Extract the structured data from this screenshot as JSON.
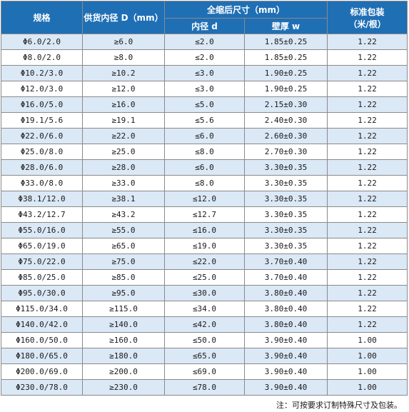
{
  "headers": {
    "spec": "规格",
    "supply_inner_dia": "供货内径 D（mm）",
    "shrunk_size": "全缩后尺寸（mm）",
    "inner_dia": "内径 d",
    "wall_thickness": "壁厚 w",
    "standard_pack": "标准包装",
    "pack_unit": "（米/根）"
  },
  "colors": {
    "header_bg": "#1f6fb5",
    "header_text": "#ffffff",
    "row_stripe": "#dbe8f6"
  },
  "rows": [
    [
      "Φ6.0/2.0",
      "≥6.0",
      "≤2.0",
      "1.85±0.25",
      "1.22"
    ],
    [
      "Φ8.0/2.0",
      "≥8.0",
      "≤2.0",
      "1.85±0.25",
      "1.22"
    ],
    [
      "Φ10.2/3.0",
      "≥10.2",
      "≤3.0",
      "1.90±0.25",
      "1.22"
    ],
    [
      "Φ12.0/3.0",
      "≥12.0",
      "≤3.0",
      "1.90±0.25",
      "1.22"
    ],
    [
      "Φ16.0/5.0",
      "≥16.0",
      "≤5.0",
      "2.15±0.30",
      "1.22"
    ],
    [
      "Φ19.1/5.6",
      "≥19.1",
      "≤5.6",
      "2.40±0.30",
      "1.22"
    ],
    [
      "Φ22.0/6.0",
      "≥22.0",
      "≤6.0",
      "2.60±0.30",
      "1.22"
    ],
    [
      "Φ25.0/8.0",
      "≥25.0",
      "≤8.0",
      "2.70±0.30",
      "1.22"
    ],
    [
      "Φ28.0/6.0",
      "≥28.0",
      "≤6.0",
      "3.30±0.35",
      "1.22"
    ],
    [
      "Φ33.0/8.0",
      "≥33.0",
      "≤8.0",
      "3.30±0.35",
      "1.22"
    ],
    [
      "Φ38.1/12.0",
      "≥38.1",
      "≤12.0",
      "3.30±0.35",
      "1.22"
    ],
    [
      "Φ43.2/12.7",
      "≥43.2",
      "≤12.7",
      "3.30±0.35",
      "1.22"
    ],
    [
      "Φ55.0/16.0",
      "≥55.0",
      "≤16.0",
      "3.30±0.35",
      "1.22"
    ],
    [
      "Φ65.0/19.0",
      "≥65.0",
      "≤19.0",
      "3.30±0.35",
      "1.22"
    ],
    [
      "Φ75.0/22.0",
      "≥75.0",
      "≤22.0",
      "3.70±0.40",
      "1.22"
    ],
    [
      "Φ85.0/25.0",
      "≥85.0",
      "≤25.0",
      "3.70±0.40",
      "1.22"
    ],
    [
      "Φ95.0/30.0",
      "≥95.0",
      "≤30.0",
      "3.80±0.40",
      "1.22"
    ],
    [
      "Φ115.0/34.0",
      "≥115.0",
      "≤34.0",
      "3.80±0.40",
      "1.22"
    ],
    [
      "Φ140.0/42.0",
      "≥140.0",
      "≤42.0",
      "3.80±0.40",
      "1.22"
    ],
    [
      "Φ160.0/50.0",
      "≥160.0",
      "≤50.0",
      "3.90±0.40",
      "1.00"
    ],
    [
      "Φ180.0/65.0",
      "≥180.0",
      "≤65.0",
      "3.90±0.40",
      "1.00"
    ],
    [
      "Φ200.0/69.0",
      "≥200.0",
      "≤69.0",
      "3.90±0.40",
      "1.00"
    ],
    [
      "Φ230.0/78.0",
      "≥230.0",
      "≤78.0",
      "3.90±0.40",
      "1.00"
    ]
  ],
  "note": "注：可按要求订制特殊尺寸及包装。"
}
